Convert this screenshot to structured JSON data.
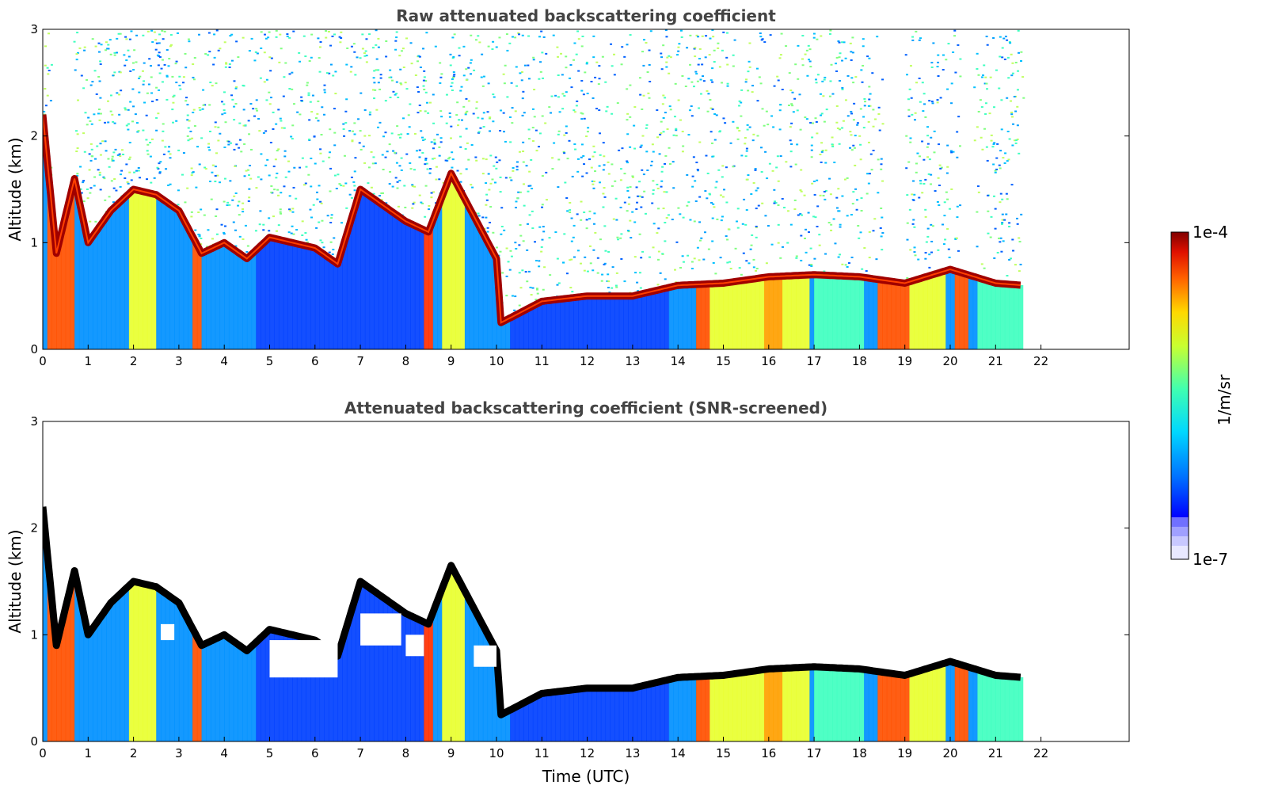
{
  "chart_data": [
    {
      "type": "heatmap",
      "title": "Raw attenuated backscattering coefficient",
      "xlabel": "",
      "ylabel": "Altitude (km)",
      "xlim": [
        0,
        24
      ],
      "ylim": [
        0,
        3
      ],
      "xticks": [
        "0",
        "1",
        "2",
        "3",
        "4",
        "5",
        "6",
        "7",
        "8",
        "9",
        "10",
        "11",
        "12",
        "13",
        "14",
        "15",
        "16",
        "17",
        "18",
        "19",
        "20",
        "21",
        "22"
      ],
      "yticks": [
        "0",
        "1",
        "2",
        "3"
      ],
      "data_end_time": 21.6,
      "cloud_base_km": [
        {
          "x": 0.0,
          "y": 2.2
        },
        {
          "x": 0.3,
          "y": 0.9
        },
        {
          "x": 0.7,
          "y": 1.6
        },
        {
          "x": 1.0,
          "y": 1.0
        },
        {
          "x": 1.5,
          "y": 1.3
        },
        {
          "x": 2.0,
          "y": 1.5
        },
        {
          "x": 2.5,
          "y": 1.45
        },
        {
          "x": 3.0,
          "y": 1.3
        },
        {
          "x": 3.5,
          "y": 0.9
        },
        {
          "x": 4.0,
          "y": 1.0
        },
        {
          "x": 4.5,
          "y": 0.85
        },
        {
          "x": 5.0,
          "y": 1.05
        },
        {
          "x": 5.5,
          "y": 1.0
        },
        {
          "x": 6.0,
          "y": 0.95
        },
        {
          "x": 6.5,
          "y": 0.8
        },
        {
          "x": 7.0,
          "y": 1.5
        },
        {
          "x": 7.5,
          "y": 1.35
        },
        {
          "x": 8.0,
          "y": 1.2
        },
        {
          "x": 8.5,
          "y": 1.1
        },
        {
          "x": 9.0,
          "y": 1.65
        },
        {
          "x": 9.5,
          "y": 1.25
        },
        {
          "x": 10.0,
          "y": 0.85
        },
        {
          "x": 10.1,
          "y": 0.25
        },
        {
          "x": 11.0,
          "y": 0.45
        },
        {
          "x": 12.0,
          "y": 0.5
        },
        {
          "x": 13.0,
          "y": 0.5
        },
        {
          "x": 14.0,
          "y": 0.6
        },
        {
          "x": 15.0,
          "y": 0.62
        },
        {
          "x": 16.0,
          "y": 0.68
        },
        {
          "x": 17.0,
          "y": 0.7
        },
        {
          "x": 18.0,
          "y": 0.68
        },
        {
          "x": 19.0,
          "y": 0.62
        },
        {
          "x": 20.0,
          "y": 0.75
        },
        {
          "x": 21.0,
          "y": 0.62
        },
        {
          "x": 21.6,
          "y": 0.6
        }
      ]
    },
    {
      "type": "heatmap",
      "title": "Attenuated backscattering coefficient (SNR-screened)",
      "xlabel": "Time (UTC)",
      "ylabel": "Altitude (km)",
      "xlim": [
        0,
        24
      ],
      "ylim": [
        0,
        3
      ],
      "xticks": [
        "0",
        "1",
        "2",
        "3",
        "4",
        "5",
        "6",
        "7",
        "8",
        "9",
        "10",
        "11",
        "12",
        "13",
        "14",
        "15",
        "16",
        "17",
        "18",
        "19",
        "20",
        "21",
        "22"
      ],
      "yticks": [
        "0",
        "1",
        "2",
        "3"
      ],
      "data_end_time": 21.6
    }
  ],
  "colorbar": {
    "label": "1/m/sr",
    "max_label": "1e-4",
    "min_label": "1e-7",
    "colormap": [
      "#0000ff",
      "#0080ff",
      "#00e0ff",
      "#40ffc0",
      "#c0ff40",
      "#ffe000",
      "#ff8000",
      "#ff2000",
      "#800000"
    ],
    "low_extension_colors": [
      "#e8e8ff",
      "#c8c8ff",
      "#a0a0ff",
      "#7070ff"
    ]
  }
}
